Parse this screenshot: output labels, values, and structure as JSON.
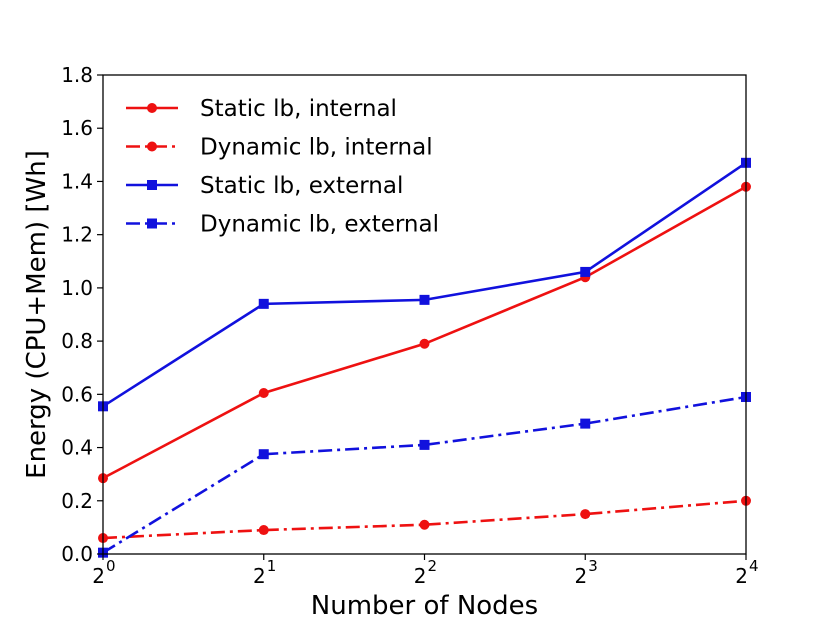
{
  "chart_data": {
    "type": "line",
    "title": "",
    "xlabel": "Number of Nodes",
    "ylabel": "Energy (CPU+Mem) [Wh]",
    "x_scale": "log2",
    "x": [
      1,
      2,
      4,
      8,
      16
    ],
    "xtick_labels": [
      {
        "base": "2",
        "exp": "0"
      },
      {
        "base": "2",
        "exp": "1"
      },
      {
        "base": "2",
        "exp": "2"
      },
      {
        "base": "2",
        "exp": "3"
      },
      {
        "base": "2",
        "exp": "4"
      }
    ],
    "ylim": [
      0.0,
      1.8
    ],
    "yticks": [
      "0.0",
      "0.2",
      "0.4",
      "0.6",
      "0.8",
      "1.0",
      "1.2",
      "1.4",
      "1.6",
      "1.8"
    ],
    "grid": false,
    "legend_position": "top-left",
    "series": [
      {
        "name": "Static lb, internal",
        "color": "#ee1111",
        "linestyle": "solid",
        "marker": "circle",
        "values": [
          0.285,
          0.605,
          0.79,
          1.04,
          1.38
        ]
      },
      {
        "name": "Dynamic lb, internal",
        "color": "#ee1111",
        "linestyle": "dashdot",
        "marker": "circle",
        "values": [
          0.06,
          0.09,
          0.11,
          0.15,
          0.2
        ]
      },
      {
        "name": "Static lb, external",
        "color": "#1111dd",
        "linestyle": "solid",
        "marker": "square",
        "values": [
          0.555,
          0.94,
          0.955,
          1.06,
          1.47
        ]
      },
      {
        "name": "Dynamic lb, external",
        "color": "#1111dd",
        "linestyle": "dashdot",
        "marker": "square",
        "values": [
          0.005,
          0.375,
          0.41,
          0.49,
          0.59
        ]
      }
    ]
  }
}
